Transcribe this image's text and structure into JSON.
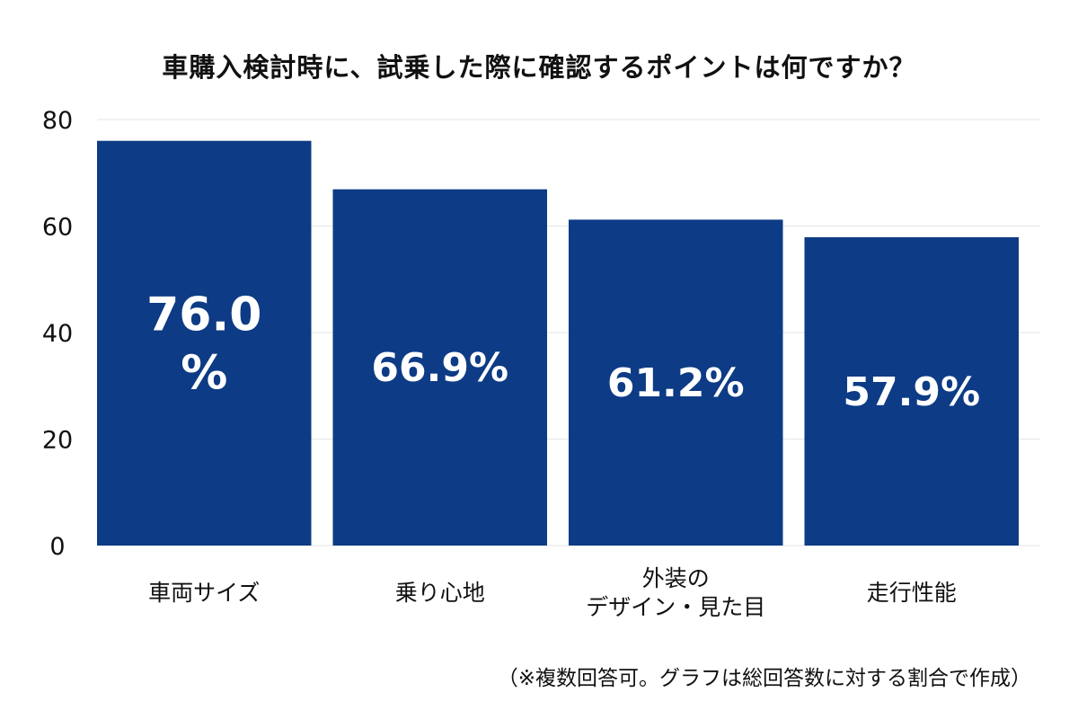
{
  "chart_data": {
    "type": "bar",
    "title": "車購入検討時に、試乗した際に確認するポイントは何ですか？",
    "categories": [
      "車両サイズ",
      "乗り心地",
      "外装の\nデザイン・見た目",
      "走行性能"
    ],
    "values": [
      76.0,
      66.9,
      61.2,
      57.9
    ],
    "data_labels": [
      "76.0\n%",
      "66.9%",
      "61.2%",
      "57.9%"
    ],
    "yticks": [
      "0",
      "20",
      "40",
      "60",
      "80"
    ],
    "ylim": [
      0,
      80
    ],
    "xlabel": "",
    "ylabel": "",
    "grid": true,
    "legend": "none",
    "bar_color": "#0d3b85",
    "grid_color": "#e6e6e6",
    "footnote": "（※複数回答可。グラフは総回答数に対する割合で作成）"
  }
}
